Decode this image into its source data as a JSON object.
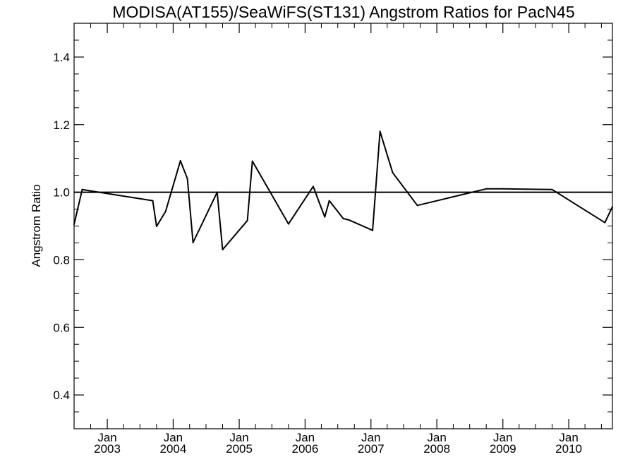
{
  "chart_data": {
    "type": "line",
    "title": "MODISA(AT155)/SeaWiFS(ST131)  Angstrom Ratios for PacN45",
    "ylabel": "Angstrom Ratio",
    "xlabel": "",
    "ylim": [
      0.3,
      1.5
    ],
    "xlim": [
      "2002-07-01",
      "2010-08-31"
    ],
    "y_ticks": [
      "0.4",
      "0.6",
      "0.8",
      "1.0",
      "1.2",
      "1.4"
    ],
    "x_ticks": [
      {
        "month": "Jan",
        "year": "2003",
        "date": "2003-01-01"
      },
      {
        "month": "Jan",
        "year": "2004",
        "date": "2004-01-01"
      },
      {
        "month": "Jan",
        "year": "2005",
        "date": "2005-01-01"
      },
      {
        "month": "Jan",
        "year": "2006",
        "date": "2006-01-01"
      },
      {
        "month": "Jan",
        "year": "2007",
        "date": "2007-01-01"
      },
      {
        "month": "Jan",
        "year": "2008",
        "date": "2008-01-01"
      },
      {
        "month": "Jan",
        "year": "2009",
        "date": "2009-01-01"
      },
      {
        "month": "Jan",
        "year": "2010",
        "date": "2010-01-01"
      }
    ],
    "reference_line": 1.0,
    "grid": false,
    "line_color": "#000000",
    "series": [
      {
        "x": [
          "2002-07-01",
          "2002-08-15",
          "2003-09-10",
          "2003-10-01",
          "2003-11-20",
          "2004-02-10",
          "2004-03-20",
          "2004-04-20",
          "2004-09-01",
          "2004-10-01",
          "2005-02-15",
          "2005-03-15",
          "2005-10-01",
          "2006-02-15",
          "2006-03-20",
          "2006-04-20",
          "2006-05-15",
          "2006-08-01",
          "2006-09-01",
          "2007-01-10",
          "2007-02-20",
          "2007-05-01",
          "2007-09-15",
          "2008-10-01",
          "2009-01-01",
          "2009-10-01",
          "2010-07-20",
          "2010-08-31"
        ],
        "y": [
          0.905,
          1.008,
          0.975,
          0.899,
          0.943,
          1.093,
          1.04,
          0.851,
          1.0,
          0.83,
          0.916,
          1.092,
          0.906,
          1.017,
          0.97,
          0.927,
          0.975,
          0.922,
          0.918,
          0.887,
          1.18,
          1.058,
          0.961,
          1.01,
          1.01,
          1.008,
          0.91,
          0.957
        ]
      }
    ]
  }
}
